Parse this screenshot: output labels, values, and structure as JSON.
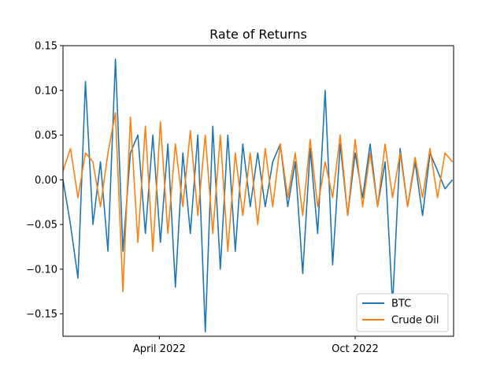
{
  "chart_data": {
    "type": "line",
    "title": "Rate of Returns",
    "xlabel": "",
    "ylabel": "",
    "x_range": [
      "2022-01-01",
      "2023-01-01"
    ],
    "ylim": [
      -0.175,
      0.15
    ],
    "yticks": [
      0.15,
      0.1,
      0.05,
      0.0,
      -0.05,
      -0.1,
      -0.15
    ],
    "ytick_labels": [
      "0.15",
      "0.10",
      "0.05",
      "0.00",
      "−0.05",
      "−0.10",
      "−0.15"
    ],
    "xticks": [
      "2022-04-01",
      "2022-10-01"
    ],
    "xtick_labels": [
      "April 2022",
      "Oct 2022"
    ],
    "grid": false,
    "legend_position": "lower-right",
    "series": [
      {
        "name": "BTC",
        "color": "#1f77b4",
        "x": [
          "2022-01-01",
          "2022-01-08",
          "2022-01-15",
          "2022-01-22",
          "2022-01-29",
          "2022-02-05",
          "2022-02-12",
          "2022-02-19",
          "2022-02-26",
          "2022-03-05",
          "2022-03-12",
          "2022-03-19",
          "2022-03-26",
          "2022-04-02",
          "2022-04-09",
          "2022-04-16",
          "2022-04-23",
          "2022-04-30",
          "2022-05-07",
          "2022-05-14",
          "2022-05-21",
          "2022-05-28",
          "2022-06-04",
          "2022-06-11",
          "2022-06-18",
          "2022-06-25",
          "2022-07-02",
          "2022-07-09",
          "2022-07-16",
          "2022-07-23",
          "2022-07-30",
          "2022-08-06",
          "2022-08-13",
          "2022-08-20",
          "2022-08-27",
          "2022-09-03",
          "2022-09-10",
          "2022-09-17",
          "2022-09-24",
          "2022-10-01",
          "2022-10-08",
          "2022-10-15",
          "2022-10-22",
          "2022-10-29",
          "2022-11-05",
          "2022-11-12",
          "2022-11-19",
          "2022-11-26",
          "2022-12-03",
          "2022-12-10",
          "2022-12-17",
          "2022-12-24",
          "2022-12-31"
        ],
        "values": [
          0.0,
          -0.05,
          -0.11,
          0.11,
          -0.05,
          0.02,
          -0.08,
          0.135,
          -0.08,
          0.03,
          0.05,
          -0.06,
          0.05,
          -0.07,
          0.04,
          -0.12,
          0.03,
          -0.06,
          0.05,
          -0.17,
          0.06,
          -0.1,
          0.05,
          -0.08,
          0.04,
          -0.03,
          0.03,
          -0.03,
          0.02,
          0.04,
          -0.03,
          0.02,
          -0.105,
          0.035,
          -0.06,
          0.1,
          -0.095,
          0.04,
          -0.04,
          0.03,
          -0.02,
          0.04,
          -0.03,
          0.02,
          -0.14,
          0.035,
          -0.03,
          0.02,
          -0.04,
          0.03,
          0.01,
          -0.01,
          0.0
        ]
      },
      {
        "name": "Crude Oil",
        "color": "#ff7f0e",
        "x": [
          "2022-01-01",
          "2022-01-08",
          "2022-01-15",
          "2022-01-22",
          "2022-01-29",
          "2022-02-05",
          "2022-02-12",
          "2022-02-19",
          "2022-02-26",
          "2022-03-05",
          "2022-03-12",
          "2022-03-19",
          "2022-03-26",
          "2022-04-02",
          "2022-04-09",
          "2022-04-16",
          "2022-04-23",
          "2022-04-30",
          "2022-05-07",
          "2022-05-14",
          "2022-05-21",
          "2022-05-28",
          "2022-06-04",
          "2022-06-11",
          "2022-06-18",
          "2022-06-25",
          "2022-07-02",
          "2022-07-09",
          "2022-07-16",
          "2022-07-23",
          "2022-07-30",
          "2022-08-06",
          "2022-08-13",
          "2022-08-20",
          "2022-08-27",
          "2022-09-03",
          "2022-09-10",
          "2022-09-17",
          "2022-09-24",
          "2022-10-01",
          "2022-10-08",
          "2022-10-15",
          "2022-10-22",
          "2022-10-29",
          "2022-11-05",
          "2022-11-12",
          "2022-11-19",
          "2022-11-26",
          "2022-12-03",
          "2022-12-10",
          "2022-12-17",
          "2022-12-24",
          "2022-12-31"
        ],
        "values": [
          0.01,
          0.035,
          -0.02,
          0.03,
          0.02,
          -0.03,
          0.03,
          0.075,
          -0.125,
          0.07,
          -0.07,
          0.06,
          -0.08,
          0.065,
          -0.06,
          0.04,
          -0.03,
          0.055,
          -0.04,
          0.05,
          -0.06,
          0.05,
          -0.08,
          0.03,
          -0.04,
          0.03,
          -0.05,
          0.035,
          -0.03,
          0.04,
          -0.02,
          0.03,
          -0.04,
          0.045,
          -0.03,
          0.02,
          -0.02,
          0.05,
          -0.04,
          0.045,
          -0.03,
          0.03,
          -0.03,
          0.04,
          -0.02,
          0.03,
          -0.03,
          0.025,
          -0.02,
          0.035,
          -0.02,
          0.03,
          0.02
        ]
      }
    ]
  }
}
